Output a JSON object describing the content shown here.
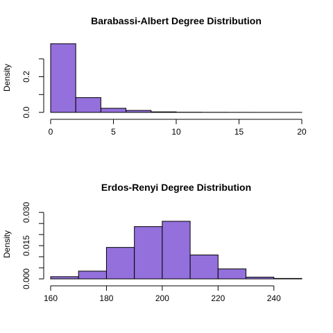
{
  "chart_data": [
    {
      "type": "bar",
      "title": "Barabassi-Albert Degree Distribution",
      "xlabel": "",
      "ylabel": "Density",
      "bar_color": "#9370DB",
      "bin_edges": [
        0,
        2,
        4,
        6,
        8,
        10,
        12,
        14,
        16,
        18,
        20
      ],
      "values": [
        0.385,
        0.083,
        0.023,
        0.011,
        0.003,
        0.001,
        0.0005,
        0.0003,
        0.0002,
        0.0001
      ],
      "xlim": [
        0,
        20
      ],
      "ylim": [
        0,
        0.385
      ],
      "xticks": [
        0,
        5,
        10,
        15,
        20
      ],
      "yticks": [
        0.0,
        0.1,
        0.2,
        0.3
      ],
      "ytick_labels": [
        "0.0",
        "",
        "0.2",
        ""
      ],
      "grid": false
    },
    {
      "type": "bar",
      "title": "Erdos-Renyi Degree Distribution",
      "xlabel": "",
      "ylabel": "Density",
      "bar_color": "#9370DB",
      "bin_edges": [
        160,
        170,
        180,
        190,
        200,
        210,
        220,
        230,
        240,
        250
      ],
      "values": [
        0.001,
        0.0035,
        0.0142,
        0.0236,
        0.026,
        0.0108,
        0.0045,
        0.0008,
        0.0002
      ],
      "xlim": [
        160,
        250
      ],
      "ylim": [
        0,
        0.031
      ],
      "xticks": [
        160,
        180,
        200,
        220,
        240
      ],
      "yticks": [
        0.0,
        0.005,
        0.01,
        0.015,
        0.02,
        0.025,
        0.03
      ],
      "ytick_labels": [
        "0.000",
        "",
        "",
        "0.015",
        "",
        "",
        "0.030"
      ],
      "grid": false
    }
  ]
}
